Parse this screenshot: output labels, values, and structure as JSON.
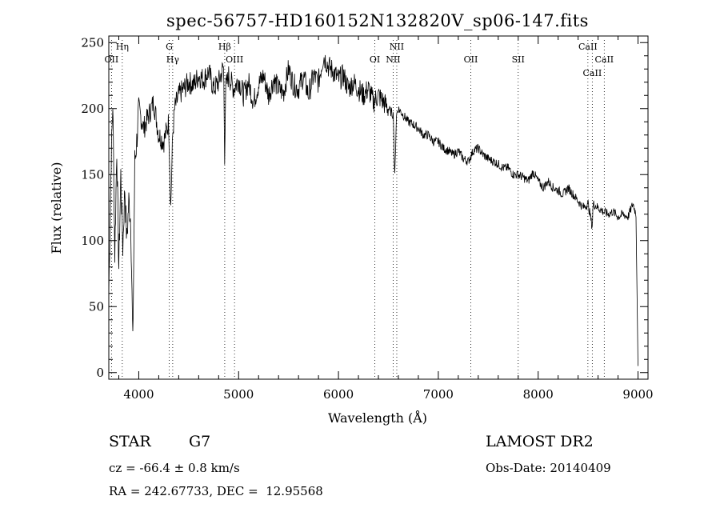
{
  "chart_data": {
    "type": "line",
    "title": "spec-56757-HD160152N132820V_sp06-147.fits",
    "xlabel": "Wavelength (Å)",
    "ylabel": "Flux (relative)",
    "xlim": [
      3700,
      9100
    ],
    "ylim": [
      -5,
      255
    ],
    "xticks": [
      4000,
      5000,
      6000,
      7000,
      8000,
      9000
    ],
    "yticks": [
      0,
      50,
      100,
      150,
      200,
      250
    ],
    "grid": false,
    "series": [
      {
        "x": [
          3700,
          3720,
          3740,
          3760,
          3780,
          3800,
          3820,
          3840,
          3860,
          3880,
          3900,
          3920,
          3940,
          3960,
          3980,
          4000,
          4050,
          4100,
          4150,
          4200,
          4250,
          4300,
          4320,
          4340,
          4360,
          4400,
          4450,
          4500,
          4550,
          4600,
          4650,
          4700,
          4750,
          4800,
          4850,
          4860,
          4870,
          4900,
          4950,
          5000,
          5050,
          5100,
          5150,
          5200,
          5250,
          5300,
          5350,
          5400,
          5450,
          5500,
          5550,
          5600,
          5650,
          5700,
          5750,
          5800,
          5850,
          5900,
          5950,
          6000,
          6050,
          6100,
          6150,
          6200,
          6250,
          6300,
          6350,
          6400,
          6450,
          6500,
          6550,
          6563,
          6580,
          6600,
          6650,
          6700,
          6750,
          6800,
          6850,
          6900,
          6950,
          7000,
          7050,
          7100,
          7150,
          7200,
          7250,
          7300,
          7350,
          7400,
          7450,
          7500,
          7550,
          7600,
          7650,
          7700,
          7750,
          7800,
          7850,
          7900,
          7950,
          8000,
          8050,
          8100,
          8150,
          8200,
          8250,
          8300,
          8350,
          8400,
          8450,
          8500,
          8542,
          8550,
          8600,
          8650,
          8700,
          8750,
          8800,
          8850,
          8900,
          8950,
          8980,
          9000
        ],
        "y": [
          60,
          150,
          205,
          90,
          170,
          80,
          150,
          95,
          140,
          100,
          130,
          115,
          20,
          160,
          175,
          200,
          185,
          195,
          205,
          180,
          175,
          190,
          125,
          180,
          200,
          210,
          215,
          220,
          218,
          225,
          222,
          228,
          215,
          220,
          232,
          165,
          215,
          225,
          215,
          222,
          210,
          220,
          205,
          218,
          225,
          210,
          222,
          215,
          212,
          230,
          218,
          215,
          225,
          210,
          225,
          220,
          240,
          232,
          228,
          222,
          225,
          215,
          220,
          215,
          210,
          215,
          205,
          210,
          205,
          200,
          195,
          145,
          195,
          200,
          195,
          190,
          188,
          185,
          180,
          180,
          175,
          175,
          170,
          168,
          165,
          168,
          162,
          160,
          168,
          170,
          165,
          162,
          160,
          158,
          155,
          155,
          150,
          150,
          148,
          145,
          152,
          145,
          140,
          145,
          140,
          138,
          135,
          140,
          135,
          130,
          125,
          128,
          110,
          128,
          125,
          122,
          120,
          122,
          118,
          120,
          118,
          128,
          120,
          5
        ]
      }
    ],
    "spectral_lines": [
      {
        "label": "Hη",
        "x": 3835
      },
      {
        "label": "OII",
        "x": 3727
      },
      {
        "label": "Hγ",
        "x": 4340
      },
      {
        "label": "G",
        "x": 4305
      },
      {
        "label": "Hβ",
        "x": 4861
      },
      {
        "label": "OIII",
        "x": 4959
      },
      {
        "label": "NII",
        "x": 6584
      },
      {
        "label": "OI",
        "x": 6364
      },
      {
        "label": "NII",
        "x": 6548
      },
      {
        "label": "OII",
        "x": 7325
      },
      {
        "label": "SII",
        "x": 7800
      },
      {
        "label": "CaII",
        "x": 8498
      },
      {
        "label": "CaII",
        "x": 8662
      },
      {
        "label": "CaII",
        "x": 8542
      }
    ]
  },
  "info": {
    "class_label": "STAR",
    "subclass": "G7",
    "survey": "LAMOST DR2",
    "cz_text": "cz = -66.4 ± 0.8 km/s",
    "obs_date_text": "Obs-Date: 20140409",
    "coords_text": "RA = 242.67733, DEC =  12.95568"
  }
}
